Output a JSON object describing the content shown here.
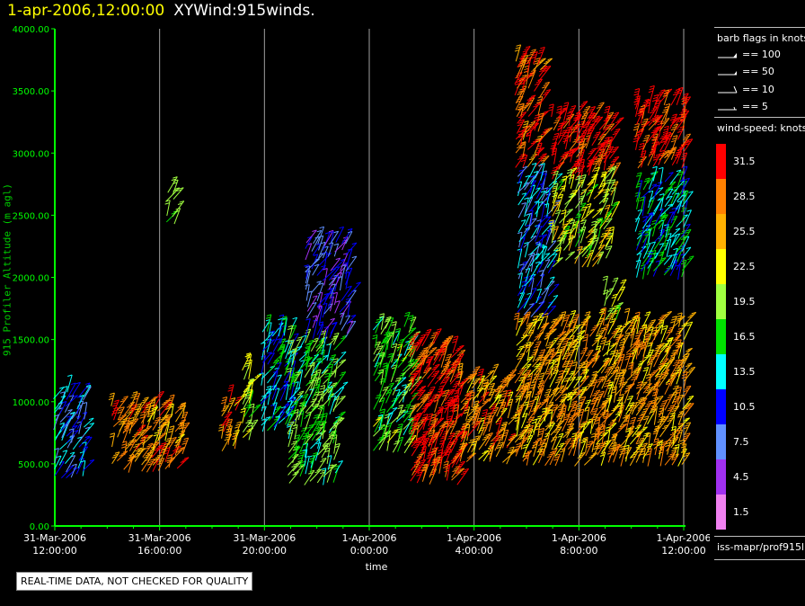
{
  "header": {
    "datetime": "1-apr-2006,12:00:00",
    "product": "XYWind:915winds."
  },
  "chart_data": {
    "type": "wind-barb",
    "ylabel": "915 Profiler Altitude (m agl)",
    "xlabel": "time",
    "ylim": [
      0,
      4000
    ],
    "y_ticks": [
      "4000.00",
      "3500.00",
      "3000.00",
      "2500.00",
      "2000.00",
      "1500.00",
      "1000.00",
      "500.00",
      "0.00"
    ],
    "y_tick_values": [
      4000,
      3500,
      3000,
      2500,
      2000,
      1500,
      1000,
      500,
      0
    ],
    "x_ticks": [
      {
        "hours": 0,
        "date": "31-Mar-2006",
        "time": "12:00:00"
      },
      {
        "hours": 4,
        "date": "31-Mar-2006",
        "time": "16:00:00"
      },
      {
        "hours": 8,
        "date": "31-Mar-2006",
        "time": "20:00:00"
      },
      {
        "hours": 12,
        "date": "1-Apr-2006",
        "time": "0:00:00"
      },
      {
        "hours": 16,
        "date": "1-Apr-2006",
        "time": "4:00:00"
      },
      {
        "hours": 20,
        "date": "1-Apr-2006",
        "time": "8:00:00"
      },
      {
        "hours": 24,
        "date": "1-Apr-2006",
        "time": "12:00:00"
      }
    ],
    "grid": "vertical",
    "wind_clusters": [
      {
        "t_start": 0.0,
        "t_end": 1.3,
        "alt_min": 400,
        "alt_max": 1100,
        "speed": 11
      },
      {
        "t_start": 2.2,
        "t_end": 5.0,
        "alt_min": 450,
        "alt_max": 950,
        "speed": 27
      },
      {
        "t_start": 4.3,
        "t_end": 4.7,
        "alt_min": 2450,
        "alt_max": 2700,
        "speed": 17
      },
      {
        "t_start": 6.4,
        "t_end": 7.0,
        "alt_min": 600,
        "alt_max": 1000,
        "speed": 27
      },
      {
        "t_start": 7.2,
        "t_end": 7.6,
        "alt_min": 700,
        "alt_max": 1300,
        "speed": 20
      },
      {
        "t_start": 7.9,
        "t_end": 9.0,
        "alt_min": 750,
        "alt_max": 1600,
        "speed": 13
      },
      {
        "t_start": 8.9,
        "t_end": 10.7,
        "alt_min": 350,
        "alt_max": 1450,
        "speed": 17
      },
      {
        "t_start": 9.6,
        "t_end": 11.3,
        "alt_min": 1500,
        "alt_max": 2300,
        "speed": 8
      },
      {
        "t_start": 12.2,
        "t_end": 13.6,
        "alt_min": 600,
        "alt_max": 1600,
        "speed": 18
      },
      {
        "t_start": 13.6,
        "t_end": 15.4,
        "alt_min": 350,
        "alt_max": 1500,
        "speed": 31
      },
      {
        "t_start": 15.5,
        "t_end": 17.3,
        "alt_min": 500,
        "alt_max": 1200,
        "speed": 27
      },
      {
        "t_start": 17.6,
        "t_end": 24.0,
        "alt_min": 500,
        "alt_max": 1600,
        "speed": 26
      },
      {
        "t_start": 17.6,
        "t_end": 18.5,
        "alt_min": 2900,
        "alt_max": 3750,
        "speed": 30
      },
      {
        "t_start": 17.7,
        "t_end": 19.0,
        "alt_min": 1700,
        "alt_max": 2800,
        "speed": 11
      },
      {
        "t_start": 19.0,
        "t_end": 21.2,
        "alt_min": 2800,
        "alt_max": 3300,
        "speed": 32
      },
      {
        "t_start": 19.0,
        "t_end": 21.4,
        "alt_min": 2100,
        "alt_max": 2800,
        "speed": 21
      },
      {
        "t_start": 21.0,
        "t_end": 21.6,
        "alt_min": 1650,
        "alt_max": 1900,
        "speed": 21
      },
      {
        "t_start": 22.2,
        "t_end": 24.0,
        "alt_min": 2900,
        "alt_max": 3400,
        "speed": 31
      },
      {
        "t_start": 22.2,
        "t_end": 24.0,
        "alt_min": 2000,
        "alt_max": 2800,
        "speed": 14
      }
    ]
  },
  "legend": {
    "barb_title": "barb flags in knots",
    "barb_items": [
      "== 100",
      "== 50",
      "== 10",
      "== 5"
    ],
    "speed_title": "wind-speed: knots",
    "speed_labels": [
      "31.5",
      "28.5",
      "25.5",
      "22.5",
      "19.5",
      "16.5",
      "13.5",
      "10.5",
      "7.5",
      "4.5",
      "1.5"
    ],
    "speed_colors": [
      "#ff0000",
      "#ff8000",
      "#ffb000",
      "#ffff00",
      "#a0ff40",
      "#00e000",
      "#00ffff",
      "#0000ff",
      "#6090ff",
      "#a030f0",
      "#f080f0"
    ],
    "footer": "iss-mapr/prof915l"
  },
  "qc_notice": "REAL-TIME DATA, NOT CHECKED FOR QUALITY",
  "colors": {
    "axis": "#00ff00",
    "grid": "#a0a0a0",
    "title_time": "#ffff00"
  }
}
